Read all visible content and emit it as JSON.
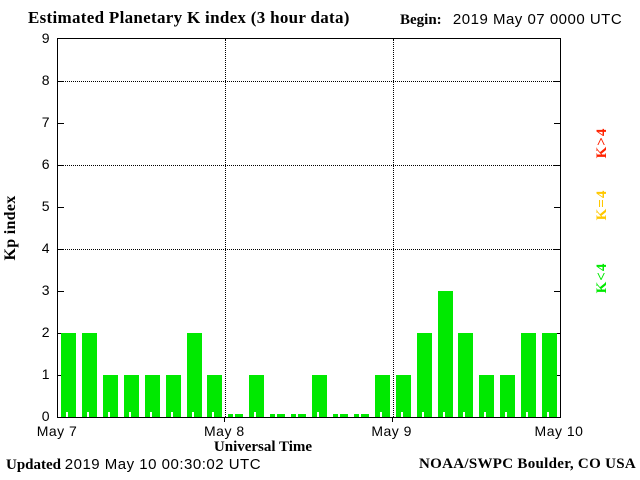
{
  "header": {
    "title": "Estimated Planetary K index (3 hour data)",
    "begin_label": "Begin:",
    "begin_value": "2019 May 07 0000 UTC"
  },
  "footer": {
    "updated_label": "Updated",
    "updated_value": "2019 May 10 00:30:02 UTC",
    "source": "NOAA/SWPC Boulder, CO USA"
  },
  "legend": [
    {
      "label": "K>4",
      "color": "#ff2200"
    },
    {
      "label": "K=4",
      "color": "#ffc800"
    },
    {
      "label": "K<4",
      "color": "#00e900"
    }
  ],
  "chart_data": {
    "type": "bar",
    "title": "Estimated Planetary K index (3 hour data)",
    "xlabel": "Universal Time",
    "ylabel": "Kp index",
    "ylim": [
      0,
      9
    ],
    "yticks": [
      0,
      1,
      2,
      3,
      4,
      5,
      6,
      7,
      8,
      9
    ],
    "grid_y_dotted": [
      4,
      6,
      8
    ],
    "grid_x_dotted_at_days": [
      1,
      2
    ],
    "interval_hours": 3,
    "x_day_labels": [
      "May 7",
      "May 8",
      "May 9",
      "May 10"
    ],
    "series": [
      {
        "name": "May 7",
        "values": [
          2,
          2,
          1,
          1,
          1,
          1,
          2,
          1
        ]
      },
      {
        "name": "May 8",
        "values": [
          0,
          1,
          0,
          0,
          1,
          0,
          0,
          1
        ]
      },
      {
        "name": "May 9",
        "values": [
          1,
          2,
          3,
          2,
          1,
          1,
          2,
          2
        ]
      }
    ],
    "bar_color": "#00e900",
    "legend_position": "right"
  }
}
